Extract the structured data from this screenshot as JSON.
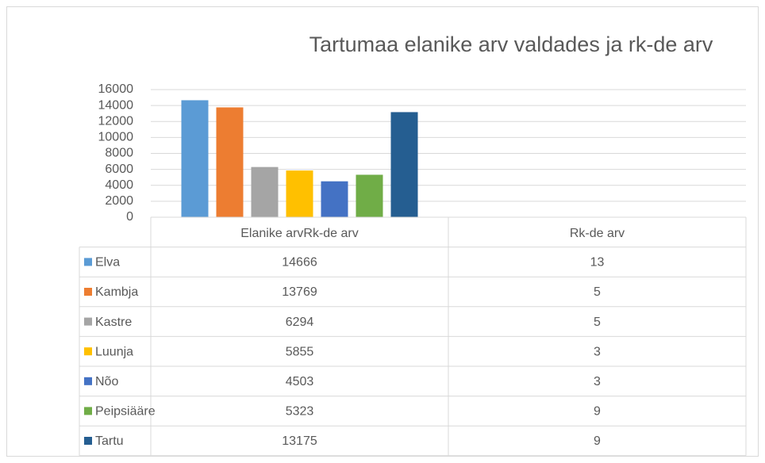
{
  "chart_data": {
    "type": "bar",
    "title": "Tartumaa elanike arv valdades ja rk-de arv",
    "categories": [
      "Elanike arvRk-de arv",
      "Rk-de arv"
    ],
    "series": [
      {
        "name": "Elva",
        "color": "#5b9bd5",
        "values": [
          14666,
          13
        ]
      },
      {
        "name": "Kambja",
        "color": "#ed7d31",
        "values": [
          13769,
          5
        ]
      },
      {
        "name": "Kastre",
        "color": "#a5a5a5",
        "values": [
          6294,
          5
        ]
      },
      {
        "name": "Luunja",
        "color": "#ffc000",
        "values": [
          5855,
          3
        ]
      },
      {
        "name": "Nõo",
        "color": "#4472c4",
        "values": [
          4503,
          3
        ]
      },
      {
        "name": "Peipsiääre",
        "color": "#70ad47",
        "values": [
          5323,
          9
        ]
      },
      {
        "name": "Tartu",
        "color": "#255e91",
        "values": [
          13175,
          9
        ]
      }
    ],
    "ylim": [
      0,
      16000
    ],
    "yticks": [
      0,
      2000,
      4000,
      6000,
      8000,
      10000,
      12000,
      14000,
      16000
    ],
    "grid": true
  }
}
